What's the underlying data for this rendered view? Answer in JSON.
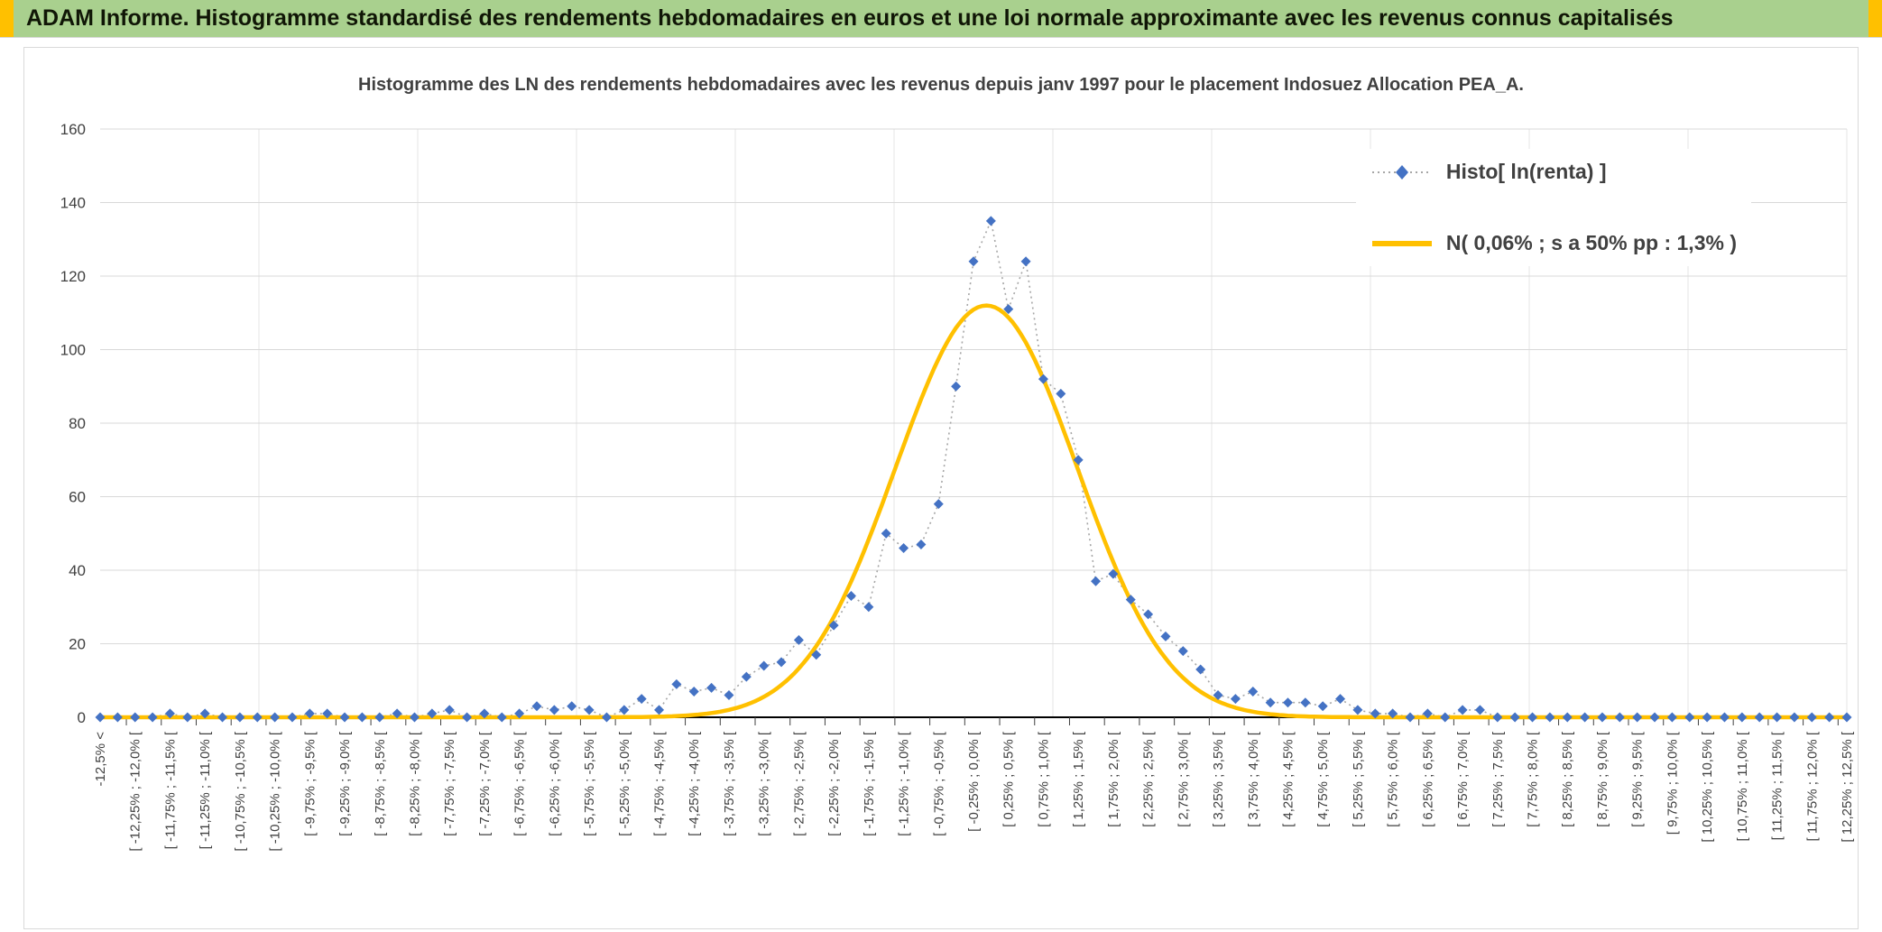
{
  "header": {
    "title": "ADAM Informe. Histogramme standardisé des rendements hebdomadaires en euros et une loi normale approximante avec les revenus connus capitalisés",
    "bg_color": "#A9D08E",
    "accent_color": "#FFC000"
  },
  "chart_data": {
    "type": "line",
    "title": "Histogramme des LN des rendements hebdomadaires avec les revenus depuis janv 1997 pour le placement Indosuez Allocation PEA_A.",
    "ylim": [
      0,
      160
    ],
    "y_ticks": [
      0,
      20,
      40,
      60,
      80,
      100,
      120,
      140,
      160
    ],
    "grid": true,
    "legend_position": "top-right",
    "n_bins": 101,
    "bin_width_pct": 0.25,
    "x_range_pct": [
      -12.5,
      12.5
    ],
    "x_label_every_n_bins": 2,
    "x_tick_labels": [
      "-12,5% <",
      "[ -12,25% ; -12,0% [",
      "[ -11,75% ; -11,5% [",
      "[ -11,25% ; -11,0% [",
      "[ -10,75% ; -10,5% [",
      "[ -10,25% ; -10,0% [",
      "[ -9,75% ; -9,5% [",
      "[ -9,25% ; -9,0% [",
      "[ -8,75% ; -8,5% [",
      "[ -8,25% ; -8,0% [",
      "[ -7,75% ; -7,5% [",
      "[ -7,25% ; -7,0% [",
      "[ -6,75% ; -6,5% [",
      "[ -6,25% ; -6,0% [",
      "[ -5,75% ; -5,5% [",
      "[ -5,25% ; -5,0% [",
      "[ -4,75% ; -4,5% [",
      "[ -4,25% ; -4,0% [",
      "[ -3,75% ; -3,5% [",
      "[ -3,25% ; -3,0% [",
      "[ -2,75% ; -2,5% [",
      "[ -2,25% ; -2,0% [",
      "[ -1,75% ; -1,5% [",
      "[ -1,25% ; -1,0% [",
      "[ -0,75% ; -0,5% [",
      "[ -0,25% ; 0,0% [",
      "[ 0,25% ; 0,5% [",
      "[ 0,75% ; 1,0% [",
      "[ 1,25% ; 1,5% [",
      "[ 1,75% ; 2,0% [",
      "[ 2,25% ; 2,5% [",
      "[ 2,75% ; 3,0% [",
      "[ 3,25% ; 3,5% [",
      "[ 3,75% ; 4,0% [",
      "[ 4,25% ; 4,5% [",
      "[ 4,75% ; 5,0% [",
      "[ 5,25% ; 5,5% [",
      "[ 5,75% ; 6,0% [",
      "[ 6,25% ; 6,5% [",
      "[ 6,75% ; 7,0% [",
      "[ 7,25% ; 7,5% [",
      "[ 7,75% ; 8,0% [",
      "[ 8,25% ; 8,5% [",
      "[ 8,75% ; 9,0% [",
      "[ 9,25% ; 9,5% [",
      "[ 9,75% ; 10,0% [",
      "[ 10,25% ; 10,5% [",
      "[ 10,75% ; 11,0% [",
      "[ 11,25% ; 11,5% [",
      "[ 11,75% ; 12,0% [",
      "[ 12,25% ; 12,5% ["
    ],
    "series": [
      {
        "name": "Histo[ ln(renta) ]",
        "type": "scatter-line",
        "marker": "diamond",
        "line_style": "dotted",
        "marker_color": "#4472C4",
        "line_color": "#A6A6A6",
        "values": [
          0,
          0,
          0,
          0,
          1,
          0,
          1,
          0,
          0,
          0,
          0,
          0,
          1,
          1,
          0,
          0,
          0,
          1,
          0,
          1,
          2,
          0,
          1,
          0,
          1,
          3,
          2,
          3,
          2,
          0,
          2,
          5,
          2,
          9,
          7,
          8,
          6,
          11,
          14,
          15,
          21,
          17,
          25,
          33,
          30,
          50,
          46,
          47,
          58,
          90,
          124,
          135,
          111,
          124,
          92,
          88,
          70,
          37,
          39,
          32,
          28,
          22,
          18,
          13,
          6,
          5,
          7,
          4,
          4,
          4,
          3,
          5,
          2,
          1,
          1,
          0,
          1,
          0,
          2,
          2,
          0,
          0,
          0,
          0,
          0,
          0,
          0,
          0,
          0,
          0,
          0,
          0,
          0,
          0,
          0,
          0,
          0,
          0,
          0,
          0,
          0
        ]
      },
      {
        "name": "N( 0,06% ; s a 50% pp : 1,3% )",
        "type": "gaussian",
        "color": "#FFC000",
        "mean_pct": 0.06,
        "sd_pct": 1.3,
        "peak": 112
      }
    ]
  }
}
